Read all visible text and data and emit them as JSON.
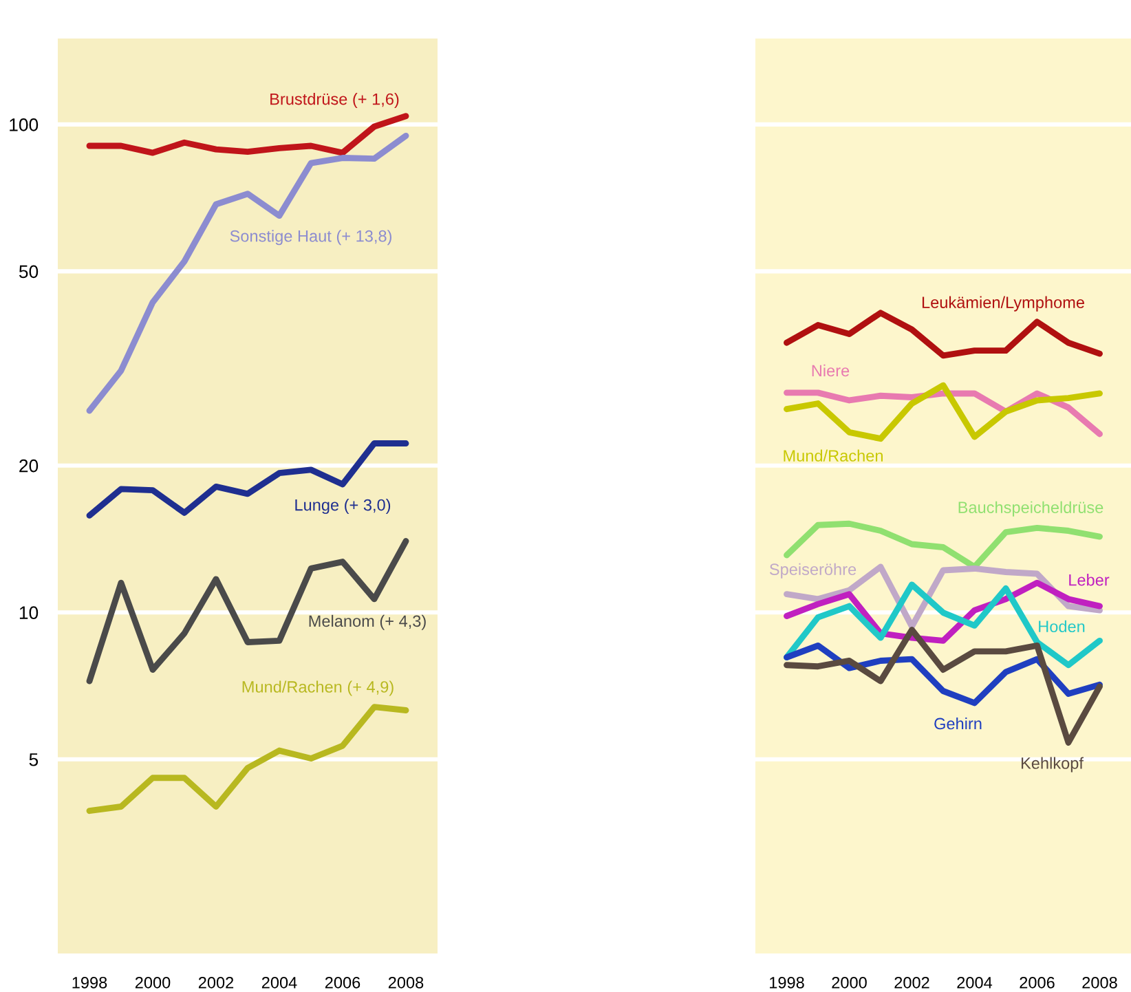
{
  "chart_data": [
    {
      "type": "line",
      "log": "y",
      "grid": "y",
      "x": [
        1998,
        1999,
        2000,
        2001,
        2002,
        2003,
        2004,
        2005,
        2006,
        2007,
        2008
      ],
      "xlim": [
        1997,
        2009
      ],
      "xticks": [
        1998,
        2000,
        2002,
        2004,
        2006,
        2008
      ],
      "ylim": [
        2,
        150
      ],
      "yticks": [
        5,
        10,
        20,
        50,
        100
      ],
      "series": [
        {
          "name": "Brustdrüse (+ 1,6)",
          "color": "#c0151a",
          "values": [
            90.4,
            90.4,
            87.5,
            91.8,
            88.9,
            87.9,
            89.4,
            90.4,
            87.5,
            99,
            104
          ]
        },
        {
          "name": "Sonstige Haut (+ 13,8)",
          "color": "#8c8cd0",
          "values": [
            25.9,
            31.3,
            43.2,
            52.4,
            68.6,
            72.1,
            65,
            83.3,
            85.4,
            85.1,
            94.8
          ]
        },
        {
          "name": "Lunge (+ 3,0)",
          "color": "#1f2f90",
          "values": [
            15.8,
            17.9,
            17.8,
            16.0,
            18.1,
            17.5,
            19.3,
            19.6,
            18.3,
            22.2,
            22.2
          ]
        },
        {
          "name": "Melanom (+ 4,3)",
          "color": "#4a4a4a",
          "values": [
            7.23,
            11.5,
            7.63,
            9.06,
            11.7,
            8.69,
            8.75,
            12.3,
            12.7,
            10.65,
            14.0
          ]
        },
        {
          "name": "Mund/Rachen (+ 4,9)",
          "color": "#b8b820",
          "values": [
            3.92,
            4.0,
            4.58,
            4.58,
            4.0,
            4.8,
            5.21,
            5.02,
            5.33,
            6.4,
            6.3
          ]
        }
      ]
    },
    {
      "type": "line",
      "log": "y",
      "grid": "y",
      "tick_labels": "x",
      "x": [
        1998,
        1999,
        2000,
        2001,
        2002,
        2003,
        2004,
        2005,
        2006,
        2007,
        2008
      ],
      "xlim": [
        1997,
        2009
      ],
      "xticks": [
        1998,
        2000,
        2002,
        2004,
        2006,
        2008
      ],
      "ylim": [
        2,
        150
      ],
      "yticks": [
        5,
        10,
        20,
        50,
        100
      ],
      "series": [
        {
          "name": "Leukämien/Lymphome",
          "color": "#b01010",
          "values": [
            35.7,
            38.8,
            37.2,
            41.1,
            38.0,
            33.6,
            34.4,
            34.4,
            39.4,
            35.7,
            33.9
          ]
        },
        {
          "name": "Niere",
          "color": "#e87ab0",
          "values": [
            28.2,
            28.2,
            27.2,
            27.8,
            27.6,
            28.1,
            28.1,
            25.8,
            28.1,
            26.3,
            23.2
          ]
        },
        {
          "name": "Mund/Rachen",
          "color": "#c8c800",
          "values": [
            26.1,
            26.8,
            23.4,
            22.7,
            26.8,
            29.2,
            22.9,
            25.8,
            27.2,
            27.5,
            28.1
          ]
        },
        {
          "name": "Bauchspeicheldrüse",
          "color": "#90e070",
          "values": [
            13.1,
            15.1,
            15.2,
            14.7,
            13.8,
            13.6,
            12.4,
            14.6,
            14.9,
            14.7,
            14.3
          ]
        },
        {
          "name": "Speiseröhre",
          "color": "#c0a8c8",
          "values": [
            10.9,
            10.65,
            11.1,
            12.4,
            9.36,
            12.2,
            12.3,
            12.1,
            12.0,
            10.3,
            10.1
          ]
        },
        {
          "name": "Leber",
          "color": "#c020c0",
          "values": [
            9.83,
            10.4,
            10.9,
            9.06,
            8.87,
            8.75,
            10.1,
            10.65,
            11.5,
            10.65,
            10.3
          ]
        },
        {
          "name": "Hoden",
          "color": "#20c8c8",
          "values": [
            8.09,
            9.77,
            10.3,
            8.87,
            11.4,
            9.99,
            9.4,
            11.2,
            8.69,
            7.8,
            8.75
          ]
        },
        {
          "name": "Gehirn",
          "color": "#1f3fc0",
          "values": [
            8.09,
            8.55,
            7.69,
            7.96,
            8.02,
            6.9,
            6.52,
            7.55,
            8.02,
            6.81,
            7.11
          ]
        },
        {
          "name": "Kehlkopf",
          "color": "#5a4a40",
          "values": [
            7.8,
            7.75,
            7.96,
            7.23,
            9.21,
            7.63,
            8.32,
            8.32,
            8.55,
            5.41,
            7.05
          ]
        }
      ]
    }
  ]
}
